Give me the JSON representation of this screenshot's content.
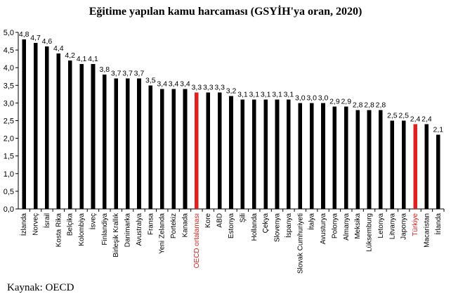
{
  "title": "Eğitime yapılan kamu harcaması (GSYİH'ya oran, 2020)",
  "source": "Kaynak: OECD",
  "chart_data": {
    "type": "bar",
    "title": "Eğitime yapılan kamu harcaması (GSYİH'ya oran, 2020)",
    "xlabel": "",
    "ylabel": "",
    "ylim": [
      0,
      5
    ],
    "yticks": [
      "0,0",
      "0,5",
      "1,0",
      "1,5",
      "2,0",
      "2,5",
      "3,0",
      "3,5",
      "4,0",
      "4,5",
      "5,0"
    ],
    "ytick_values": [
      0,
      0.5,
      1,
      1.5,
      2,
      2.5,
      3,
      3.5,
      4,
      4.5,
      5
    ],
    "grid": false,
    "colors": {
      "default": "#000000",
      "highlight": "#e02020"
    },
    "categories": [
      "İzlanda",
      "Norveç",
      "İsrail",
      "Kosta Rika",
      "Belçika",
      "Kolombiya",
      "İsveç",
      "Finlandiya",
      "Birleşik Krallık",
      "Danimarka",
      "Avustralya",
      "Fransa",
      "Yeni Zelanda",
      "Portekiz",
      "Kanada",
      "OECD ortalaması",
      "Kore",
      "ABD",
      "Estonya",
      "Şili",
      "Hollanda",
      "Çekya",
      "Slovenya",
      "İspanya",
      "Slovak Cumhuriyeti",
      "İtalya",
      "Avusturya",
      "Polonya",
      "Almanya",
      "Meksika",
      "Lüksemburg",
      "Letonya",
      "Litvanya",
      "Japonya",
      "Türkiye",
      "Macaristan",
      "İrlanda"
    ],
    "values": [
      4.8,
      4.7,
      4.6,
      4.4,
      4.2,
      4.1,
      4.1,
      3.8,
      3.7,
      3.7,
      3.7,
      3.5,
      3.4,
      3.4,
      3.4,
      3.3,
      3.3,
      3.3,
      3.2,
      3.1,
      3.1,
      3.1,
      3.1,
      3.1,
      3.0,
      3.0,
      3.0,
      2.9,
      2.9,
      2.8,
      2.8,
      2.8,
      2.5,
      2.5,
      2.4,
      2.4,
      2.1
    ],
    "value_labels": [
      "4,8",
      "4,7",
      "4,6",
      "4,4",
      "4,2",
      "4,1",
      "4,1",
      "3,8",
      "3,7",
      "3,7",
      "3,7",
      "3,5",
      "3,4",
      "3,4",
      "3,4",
      "3,3",
      "3,3",
      "3,3",
      "3,2",
      "3,1",
      "3,1",
      "3,1",
      "3,1",
      "3,1",
      "3,0",
      "3,0",
      "3,0",
      "2,9",
      "2,9",
      "2,8",
      "2,8",
      "2,8",
      "2,5",
      "2,5",
      "2,4",
      "2,4",
      "2,1"
    ],
    "highlight": [
      "OECD ortalaması",
      "Türkiye"
    ]
  }
}
